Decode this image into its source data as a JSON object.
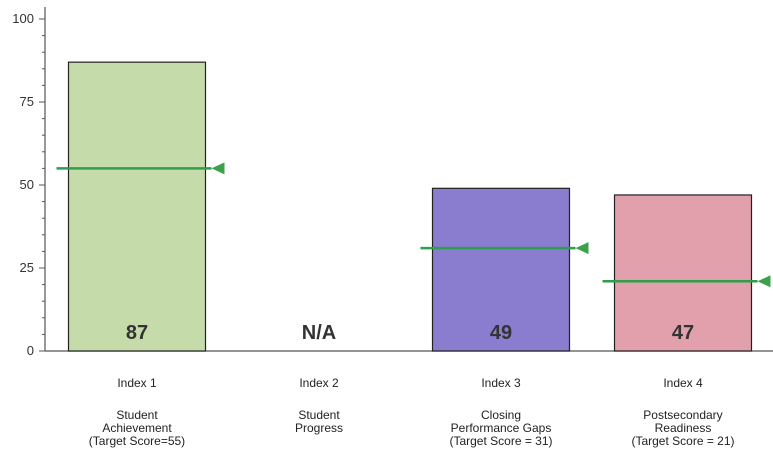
{
  "chart_data": {
    "type": "bar",
    "ylim": [
      0,
      100
    ],
    "yticks": [
      0,
      25,
      50,
      75,
      100
    ],
    "grid": false,
    "categories": [
      {
        "index_label": "Index 1",
        "desc": [
          "Student",
          "Achievement",
          "(Target Score=55)"
        ],
        "value": 87,
        "value_label": "87",
        "target": 55,
        "color": "#c5dcaa"
      },
      {
        "index_label": "Index 2",
        "desc": [
          "Student",
          "Progress"
        ],
        "value": null,
        "value_label": "N/A",
        "target": null,
        "color": "#ffffff"
      },
      {
        "index_label": "Index 3",
        "desc": [
          "Closing",
          "Performance Gaps",
          "(Target Score = 31)"
        ],
        "value": 49,
        "value_label": "49",
        "target": 31,
        "color": "#8a7ccf"
      },
      {
        "index_label": "Index 4",
        "desc": [
          "Postsecondary",
          "Readiness",
          "(Target Score = 21)"
        ],
        "value": 47,
        "value_label": "47",
        "target": 21,
        "color": "#e2a0ad"
      }
    ],
    "target_line_color": "#2e9e4a",
    "target_marker_color": "#3aa24a"
  }
}
